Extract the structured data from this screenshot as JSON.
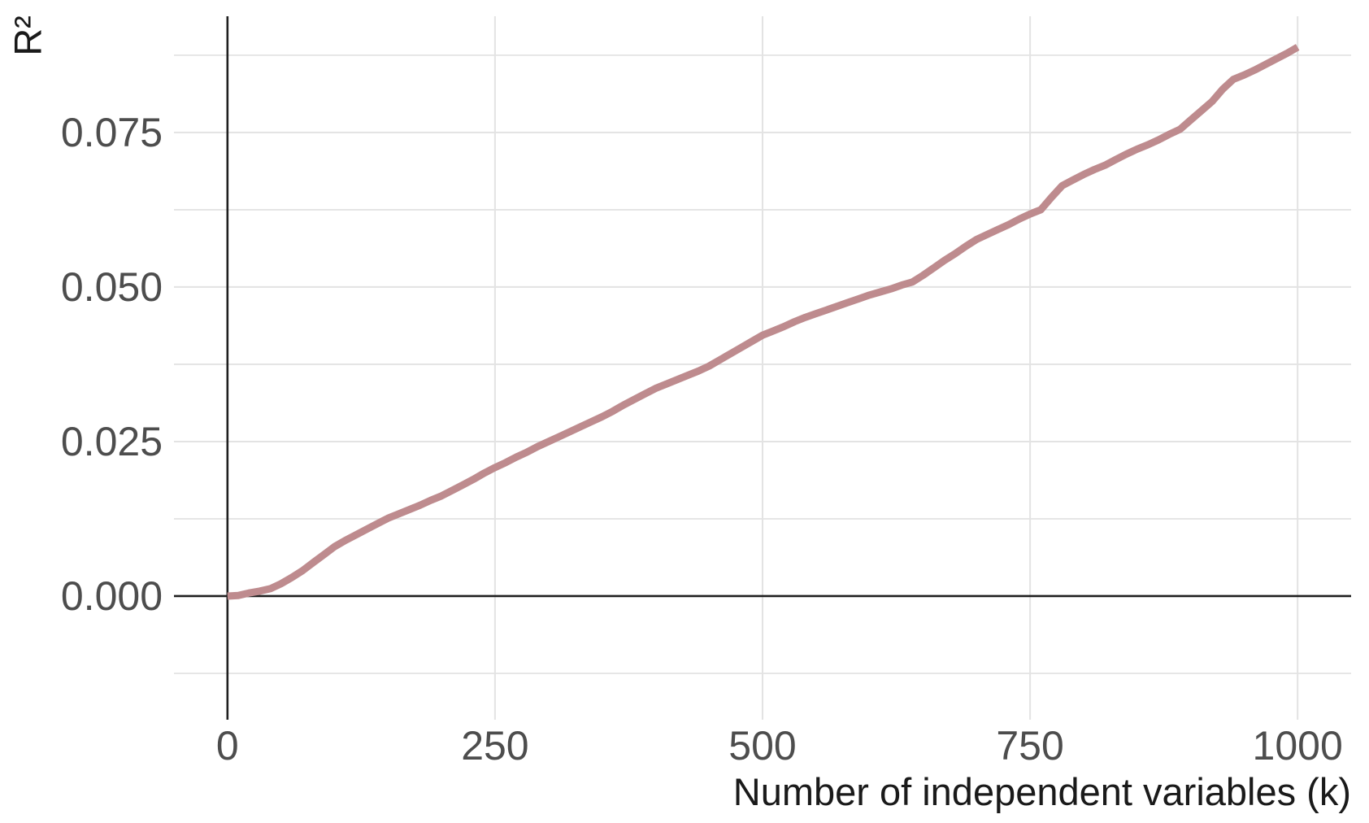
{
  "figure": {
    "background": "#ffffff"
  },
  "chart_data": {
    "type": "line",
    "title": "",
    "xlabel": "Number of independent variables (k)",
    "ylabel": "R²",
    "x_domain": [
      -50,
      1050
    ],
    "y_domain": [
      -0.02,
      0.0938
    ],
    "x_major_ticks": [
      0,
      250,
      500,
      750,
      1000
    ],
    "x_tick_labels": [
      "0",
      "250",
      "500",
      "750",
      "1000"
    ],
    "y_major_ticks": [
      0.025,
      0.05,
      0.075
    ],
    "y_tick_positions": [
      0,
      0.025,
      0.05,
      0.075
    ],
    "y_tick_labels": [
      "0.000",
      "0.025",
      "0.050",
      "0.075"
    ],
    "y_minor_gridlines": [
      -0.0125,
      0.0125,
      0.0375,
      0.0625,
      0.0875
    ],
    "grid": "major-and-minor-horizontal, major-vertical",
    "legend": "none",
    "axis_lines": {
      "x_at_y": 0,
      "y_at_x": 0
    },
    "series": [
      {
        "name": "R²",
        "x": [
          0,
          10,
          20,
          30,
          40,
          50,
          60,
          70,
          80,
          90,
          100,
          110,
          120,
          130,
          140,
          150,
          160,
          170,
          180,
          190,
          200,
          210,
          220,
          230,
          240,
          250,
          260,
          270,
          280,
          290,
          300,
          310,
          320,
          330,
          340,
          350,
          360,
          370,
          380,
          390,
          400,
          410,
          420,
          430,
          440,
          450,
          460,
          470,
          480,
          490,
          500,
          510,
          520,
          530,
          540,
          550,
          560,
          570,
          580,
          590,
          600,
          610,
          620,
          630,
          640,
          650,
          660,
          670,
          680,
          690,
          700,
          710,
          720,
          730,
          740,
          750,
          760,
          770,
          780,
          790,
          800,
          810,
          820,
          830,
          840,
          850,
          860,
          870,
          880,
          890,
          900,
          910,
          920,
          930,
          940,
          950,
          960,
          970,
          980,
          990,
          1000
        ],
        "y": [
          0.0,
          0.0001,
          0.0005,
          0.0008,
          0.0012,
          0.002,
          0.003,
          0.0041,
          0.0054,
          0.0067,
          0.008,
          0.009,
          0.0099,
          0.0108,
          0.0117,
          0.0126,
          0.0133,
          0.014,
          0.0147,
          0.0155,
          0.0162,
          0.0171,
          0.018,
          0.0189,
          0.0199,
          0.0208,
          0.0216,
          0.0225,
          0.0233,
          0.0242,
          0.025,
          0.0258,
          0.0266,
          0.0274,
          0.0282,
          0.029,
          0.0299,
          0.0309,
          0.0318,
          0.0327,
          0.0336,
          0.0343,
          0.035,
          0.0357,
          0.0364,
          0.0372,
          0.0382,
          0.0392,
          0.0402,
          0.0412,
          0.0422,
          0.0429,
          0.0436,
          0.0444,
          0.0451,
          0.0457,
          0.0463,
          0.0469,
          0.0475,
          0.0481,
          0.0487,
          0.0492,
          0.0497,
          0.0503,
          0.0508,
          0.0519,
          0.0531,
          0.0543,
          0.0554,
          0.0566,
          0.0577,
          0.0585,
          0.0593,
          0.0601,
          0.061,
          0.0618,
          0.0625,
          0.0645,
          0.0664,
          0.0673,
          0.0682,
          0.069,
          0.0697,
          0.0706,
          0.0715,
          0.0723,
          0.073,
          0.0738,
          0.0747,
          0.0755,
          0.077,
          0.0785,
          0.08,
          0.082,
          0.0836,
          0.0843,
          0.0851,
          0.086,
          0.0869,
          0.0878,
          0.0888
        ]
      }
    ],
    "colors": {
      "line": "#be8b8e",
      "grid": "#e3e3e3",
      "axis": "#1f1f1f",
      "tick_text": "#4d4d4d",
      "title_text": "#1a1a1a",
      "background": "#ffffff"
    }
  }
}
